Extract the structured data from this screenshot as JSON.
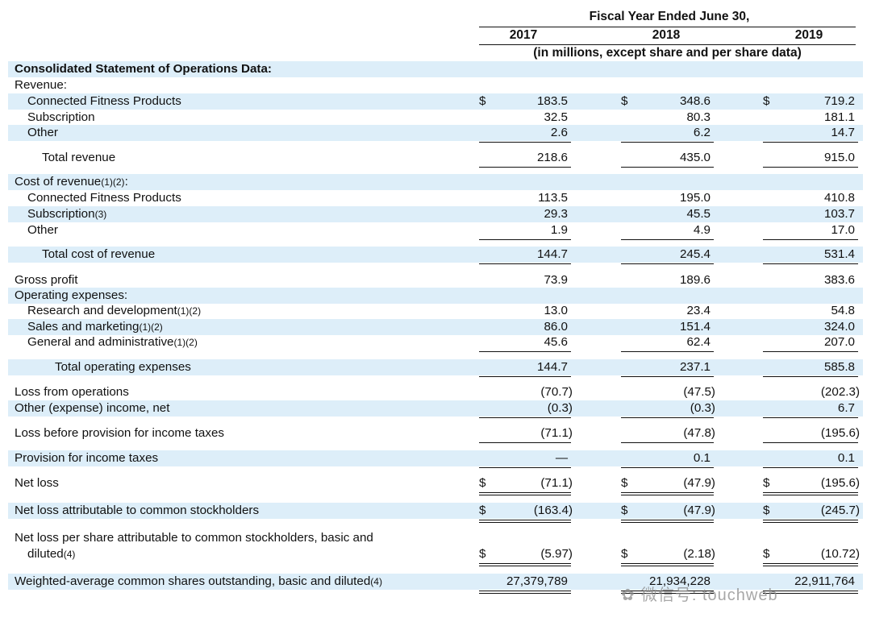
{
  "header": {
    "fiscal_caption": "Fiscal Year Ended June 30,",
    "years": [
      "2017",
      "2018",
      "2019"
    ],
    "units_caption": "(in millions, except share and per share data)"
  },
  "rows": [
    {
      "label": "Consolidated Statement of Operations Data:",
      "bold": true,
      "shaded": true
    },
    {
      "label": "Revenue:"
    },
    {
      "label": "Connected Fitness Products",
      "indent": 1,
      "shaded": true,
      "dollar": true,
      "values": [
        "183.5",
        "348.6",
        "719.2"
      ]
    },
    {
      "label": "Subscription",
      "indent": 1,
      "values": [
        "32.5",
        "80.3",
        "181.1"
      ]
    },
    {
      "label": "Other",
      "indent": 1,
      "shaded": true,
      "values": [
        "2.6",
        "6.2",
        "14.7"
      ],
      "under": "single"
    },
    {
      "label": "Total revenue",
      "indent": 2,
      "values": [
        "218.6",
        "435.0",
        "915.0"
      ],
      "under": "single"
    },
    {
      "label": "Cost of revenue",
      "note": "(1)(2)",
      "suffix": ":",
      "shaded": true
    },
    {
      "label": "Connected Fitness Products",
      "indent": 1,
      "values": [
        "113.5",
        "195.0",
        "410.8"
      ]
    },
    {
      "label": "Subscription",
      "note": "(3)",
      "indent": 1,
      "shaded": true,
      "values": [
        "29.3",
        "45.5",
        "103.7"
      ]
    },
    {
      "label": "Other",
      "indent": 1,
      "values": [
        "1.9",
        "4.9",
        "17.0"
      ],
      "under": "single"
    },
    {
      "label": "Total cost of revenue",
      "indent": 2,
      "shaded": true,
      "values": [
        "144.7",
        "245.4",
        "531.4"
      ],
      "under": "single"
    },
    {
      "label": "Gross profit",
      "values": [
        "73.9",
        "189.6",
        "383.6"
      ]
    },
    {
      "label": "Operating expenses:",
      "shaded": true
    },
    {
      "label": "Research and development",
      "note": "(1)(2)",
      "indent": 1,
      "values": [
        "13.0",
        "23.4",
        "54.8"
      ]
    },
    {
      "label": "Sales and marketing",
      "note": "(1)(2)",
      "indent": 1,
      "shaded": true,
      "values": [
        "86.0",
        "151.4",
        "324.0"
      ]
    },
    {
      "label": "General and administrative",
      "note": "(1)(2)",
      "indent": 1,
      "values": [
        "45.6",
        "62.4",
        "207.0"
      ],
      "under": "single"
    },
    {
      "label": "Total operating expenses",
      "indent": 3,
      "shaded": true,
      "values": [
        "144.7",
        "237.1",
        "585.8"
      ],
      "under": "single"
    },
    {
      "label": "Loss from operations",
      "values": [
        "(70.7)",
        "(47.5)",
        "(202.3)"
      ]
    },
    {
      "label": "Other (expense) income, net",
      "shaded": true,
      "values": [
        "(0.3)",
        "(0.3)",
        "6.7"
      ],
      "under": "single"
    },
    {
      "label": "Loss before provision for income taxes",
      "values": [
        "(71.1)",
        "(47.8)",
        "(195.6)"
      ],
      "under": "single"
    },
    {
      "label": "Provision for income taxes",
      "shaded": true,
      "values": [
        "—",
        "0.1",
        "0.1"
      ],
      "under": "single"
    },
    {
      "label": "Net loss",
      "dollar": true,
      "values": [
        "(71.1)",
        "(47.9)",
        "(195.6)"
      ],
      "under": "double"
    },
    {
      "label": "Net loss attributable to common stockholders",
      "shaded": true,
      "dollar": true,
      "values": [
        "(163.4)",
        "(47.9)",
        "(245.7)"
      ],
      "under": "double"
    },
    {
      "label": "Net loss per share attributable to common stockholders, basic and",
      "label2": "diluted",
      "note": "(4)",
      "dollar": true,
      "values": [
        "(5.97)",
        "(2.18)",
        "(10.72)"
      ],
      "under": "double",
      "tall": true
    },
    {
      "label": "Weighted-average common shares outstanding, basic and diluted",
      "note": "(4)",
      "shaded": true,
      "values": [
        "27,379,789",
        "21,934,228",
        "22,911,764"
      ],
      "under": "double"
    }
  ],
  "currency_symbol": "$",
  "watermark": "微信号: touchweb",
  "colors": {
    "shade": "#ddeef9",
    "text": "#111111"
  }
}
